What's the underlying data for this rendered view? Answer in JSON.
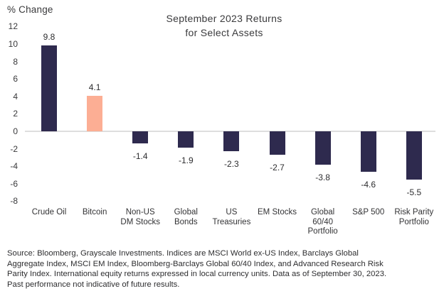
{
  "chart_data": {
    "type": "bar",
    "title": "September 2023 Returns for Select Assets",
    "title_lines": [
      "September 2023 Returns",
      "for Select Assets"
    ],
    "ylabel": "% Change",
    "xlabel": "",
    "categories": [
      "Crude Oil",
      "Bitcoin",
      "Non-US DM Stocks",
      "Global Bonds",
      "US Treasuries",
      "EM Stocks",
      "Global 60/40 Portfolio",
      "S&P 500",
      "Risk Parity Portfolio"
    ],
    "category_lines": [
      [
        "Crude Oil"
      ],
      [
        "Bitcoin"
      ],
      [
        "Non-US",
        "DM Stocks"
      ],
      [
        "Global",
        "Bonds"
      ],
      [
        "US",
        "Treasuries"
      ],
      [
        "EM Stocks"
      ],
      [
        "Global",
        "60/40",
        "Portfolio"
      ],
      [
        "S&P 500"
      ],
      [
        "Risk Parity",
        "Portfolio"
      ]
    ],
    "values": [
      9.8,
      4.1,
      -1.4,
      -1.9,
      -2.3,
      -2.7,
      -3.8,
      -4.6,
      -5.5
    ],
    "value_labels": [
      "9.8",
      "4.1",
      "-1.4",
      "-1.9",
      "-2.3",
      "-2.7",
      "-3.8",
      "-4.6",
      "-5.5"
    ],
    "ylim": [
      -8,
      12
    ],
    "yticks": [
      12,
      10,
      8,
      6,
      4,
      2,
      0,
      -2,
      -4,
      -6,
      -8
    ],
    "grid": false,
    "legend": null,
    "colors": {
      "bar_default": "#2E2A4E",
      "bar_highlight": "#FCAE94",
      "zero_line": "#dedede",
      "text": "#333335"
    },
    "highlight_index": 1
  },
  "source_note": {
    "lines": [
      "Source: Bloomberg, Grayscale Investments. Indices are MSCI World ex-US Index, Barclays Global",
      "Aggregate Index, MSCI EM Index, Bloomberg-Barclays Global 60/40 Index, and Advanced Research Risk",
      "Parity Index. International equity returns expressed in local currency units. Data as of September 30, 2023.",
      "Past performance not indicative of future results."
    ]
  }
}
